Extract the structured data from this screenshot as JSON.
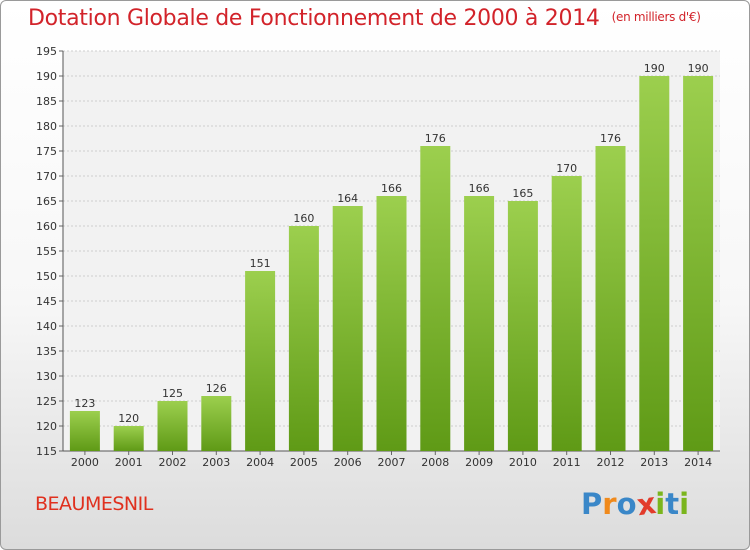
{
  "chart_data": {
    "type": "bar",
    "title": "Dotation Globale de Fonctionnement de 2000 à 2014",
    "subtitle": "(en milliers d'€)",
    "categories": [
      "2000",
      "2001",
      "2002",
      "2003",
      "2004",
      "2005",
      "2006",
      "2007",
      "2008",
      "2009",
      "2010",
      "2011",
      "2012",
      "2013",
      "2014"
    ],
    "values": [
      123,
      120,
      125,
      126,
      151,
      160,
      164,
      166,
      176,
      166,
      165,
      170,
      176,
      190,
      190
    ],
    "ylim": [
      115,
      195
    ],
    "yticks": [
      115,
      120,
      125,
      130,
      135,
      140,
      145,
      150,
      155,
      160,
      165,
      170,
      175,
      180,
      185,
      190,
      195
    ],
    "xlabel": "",
    "ylabel": "",
    "grid": true,
    "bar_color_top": "#9ccf4e",
    "bar_color_bottom": "#5f9a16"
  },
  "footer": {
    "commune": "BEAUMESNIL",
    "logo_letters": [
      "P",
      "r",
      "o",
      "x",
      "i",
      "t",
      "i"
    ],
    "logo_colors": [
      "#3a87c8",
      "#f08a1c",
      "#3a87c8",
      "#e23b2b",
      "#7ab51d",
      "#3a87c8",
      "#7ab51d"
    ]
  }
}
